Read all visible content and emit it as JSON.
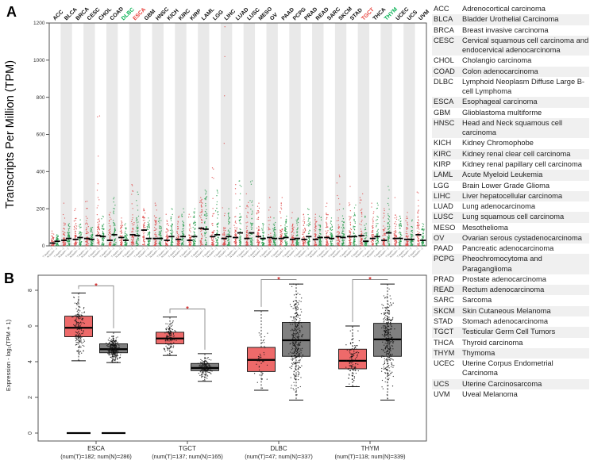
{
  "figure": {
    "panel_a_label": "A",
    "panel_b_label": "B"
  },
  "chart_data": [
    {
      "type": "scatter",
      "panel": "A",
      "ylabel": "Transcripts Per Million (TPM)",
      "ylim": [
        0,
        1200
      ],
      "yticks": [
        0,
        200,
        400,
        600,
        800,
        1000,
        1200
      ],
      "x_tick_pattern": [
        "T (num=···)",
        "N (num=···)"
      ],
      "tumor_color": "#df5050",
      "normal_color": "#2e9e52",
      "median_color": "#000000",
      "band_color": "#e9e9e9",
      "label_highlights": {
        "DLBC": "#00b050",
        "ESCA": "#e8403a",
        "TGCT": "#e8403a",
        "THYM": "#00b050"
      },
      "estimated": true,
      "categories": [
        "ACC",
        "BLCA",
        "BRCA",
        "CESC",
        "CHOL",
        "COAD",
        "DLBC",
        "ESCA",
        "GBM",
        "HNSC",
        "KICH",
        "KIRC",
        "KIRP",
        "LAML",
        "LGG",
        "LIHC",
        "LUAD",
        "LUSC",
        "MESO",
        "OV",
        "PAAD",
        "PCPG",
        "PRAD",
        "READ",
        "SARC",
        "SKCM",
        "STAD",
        "TGCT",
        "THCA",
        "THYM",
        "UCEC",
        "UCS",
        "UVM"
      ],
      "tumor_median": [
        15,
        30,
        35,
        40,
        55,
        30,
        45,
        60,
        85,
        40,
        30,
        35,
        30,
        95,
        50,
        40,
        45,
        40,
        50,
        45,
        40,
        35,
        35,
        35,
        45,
        50,
        50,
        55,
        40,
        30,
        40,
        35,
        60
      ],
      "tumor_max": [
        80,
        230,
        200,
        240,
        700,
        180,
        150,
        330,
        200,
        230,
        170,
        160,
        170,
        260,
        420,
        1180,
        330,
        280,
        230,
        260,
        260,
        180,
        170,
        170,
        230,
        380,
        320,
        280,
        230,
        200,
        260,
        180,
        290
      ],
      "normal_median": [
        25,
        40,
        45,
        35,
        50,
        60,
        30,
        55,
        40,
        40,
        50,
        50,
        50,
        90,
        60,
        50,
        70,
        70,
        40,
        40,
        45,
        40,
        50,
        45,
        40,
        45,
        50,
        25,
        50,
        70,
        40,
        35,
        30
      ],
      "normal_max": [
        60,
        120,
        140,
        100,
        160,
        260,
        120,
        290,
        150,
        150,
        200,
        200,
        200,
        300,
        300,
        200,
        350,
        350,
        120,
        150,
        160,
        150,
        200,
        160,
        150,
        200,
        220,
        160,
        230,
        320,
        160,
        140,
        120
      ]
    },
    {
      "type": "box",
      "panel": "B",
      "ylabel": "Expression - log₂(TPM + 1)",
      "ylim": [
        0,
        8.8
      ],
      "yticks": [
        0,
        2,
        4,
        6,
        8
      ],
      "tumor_fill": "#ee6a6a",
      "normal_fill": "#808080",
      "box_stroke": "#111111",
      "bracket_color": "#888888",
      "sig_color": "#d22a2a",
      "estimated": true,
      "groups": [
        {
          "name": "ESCA",
          "sub": "(num(T)=182; num(N)=286)",
          "n_t": 182,
          "n_n": 286,
          "tumor": {
            "lo": 4.05,
            "q1": 5.4,
            "med": 5.9,
            "q3": 6.55,
            "hi": 7.85
          },
          "normal": {
            "lo": 3.95,
            "q1": 4.5,
            "med": 4.7,
            "q3": 5.0,
            "hi": 5.65
          },
          "zero_lines": true,
          "sig": "*",
          "bracket_y": 8.25
        },
        {
          "name": "TGCT",
          "sub": "(num(T)=137; num(N)=165)",
          "n_t": 137,
          "n_n": 165,
          "tumor": {
            "lo": 4.35,
            "q1": 5.0,
            "med": 5.3,
            "q3": 5.65,
            "hi": 6.5
          },
          "normal": {
            "lo": 2.9,
            "q1": 3.5,
            "med": 3.65,
            "q3": 3.9,
            "hi": 4.45
          },
          "zero_lines": false,
          "sig": "*",
          "bracket_y": 6.95
        },
        {
          "name": "DLBC",
          "sub": "(num(T)=47; num(N)=337)",
          "n_t": 47,
          "n_n": 337,
          "tumor": {
            "lo": 2.4,
            "q1": 3.45,
            "med": 4.1,
            "q3": 4.8,
            "hi": 6.85
          },
          "normal": {
            "lo": 1.85,
            "q1": 4.3,
            "med": 5.2,
            "q3": 6.2,
            "hi": 8.35
          },
          "zero_lines": false,
          "sig": "*",
          "bracket_y": 8.6
        },
        {
          "name": "THYM",
          "sub": "(num(T)=118; num(N)=339)",
          "n_t": 118,
          "n_n": 339,
          "tumor": {
            "lo": 2.6,
            "q1": 3.6,
            "med": 4.05,
            "q3": 4.7,
            "hi": 6.0
          },
          "normal": {
            "lo": 1.85,
            "q1": 4.3,
            "med": 5.25,
            "q3": 6.15,
            "hi": 8.35
          },
          "zero_lines": false,
          "sig": "*",
          "bracket_y": 8.6
        }
      ]
    }
  ],
  "legend_table": {
    "rows": [
      {
        "abbr": "ACC",
        "name": "Adrenocortical carcinoma"
      },
      {
        "abbr": "BLCA",
        "name": "Bladder Urothelial Carcinoma"
      },
      {
        "abbr": "BRCA",
        "name": "Breast invasive carcinoma"
      },
      {
        "abbr": "CESC",
        "name": "Cervical squamous cell carcinoma and endocervical adenocarcinoma"
      },
      {
        "abbr": "CHOL",
        "name": "Cholangio carcinoma"
      },
      {
        "abbr": "COAD",
        "name": "Colon adenocarcinoma"
      },
      {
        "abbr": "DLBC",
        "name": "Lymphoid Neoplasm Diffuse Large B-cell Lymphoma"
      },
      {
        "abbr": "ESCA",
        "name": "Esophageal carcinoma"
      },
      {
        "abbr": "GBM",
        "name": "Glioblastoma multiforme"
      },
      {
        "abbr": "HNSC",
        "name": "Head and Neck squamous cell carcinoma"
      },
      {
        "abbr": "KICH",
        "name": "Kidney Chromophobe"
      },
      {
        "abbr": "KIRC",
        "name": "Kidney renal clear cell carcinoma"
      },
      {
        "abbr": "KIRP",
        "name": "Kidney renal papillary cell carcinoma"
      },
      {
        "abbr": "LAML",
        "name": "Acute Myeloid Leukemia"
      },
      {
        "abbr": "LGG",
        "name": "Brain Lower Grade Glioma"
      },
      {
        "abbr": "LIHC",
        "name": "Liver hepatocellular carcinoma"
      },
      {
        "abbr": "LUAD",
        "name": "Lung adenocarcinoma"
      },
      {
        "abbr": "LUSC",
        "name": "Lung squamous cell carcinoma"
      },
      {
        "abbr": "MESO",
        "name": "Mesothelioma"
      },
      {
        "abbr": "OV",
        "name": "Ovarian serous cystadenocarcinoma"
      },
      {
        "abbr": "PAAD",
        "name": "Pancreatic adenocarcinoma"
      },
      {
        "abbr": "PCPG",
        "name": "Pheochromocytoma and Paraganglioma"
      },
      {
        "abbr": "PRAD",
        "name": "Prostate adenocarcinoma"
      },
      {
        "abbr": "READ",
        "name": "Rectum adenocarcinoma"
      },
      {
        "abbr": "SARC",
        "name": "Sarcoma"
      },
      {
        "abbr": "SKCM",
        "name": "Skin Cutaneous Melanoma"
      },
      {
        "abbr": "STAD",
        "name": "Stomach adenocarcinoma"
      },
      {
        "abbr": "TGCT",
        "name": "Testicular Germ Cell Tumors"
      },
      {
        "abbr": "THCA",
        "name": "Thyroid carcinoma"
      },
      {
        "abbr": "THYM",
        "name": "Thymoma"
      },
      {
        "abbr": "UCEC",
        "name": "Uterine Corpus Endometrial Carcinoma"
      },
      {
        "abbr": "UCS",
        "name": "Uterine Carcinosarcoma"
      },
      {
        "abbr": "UVM",
        "name": "Uveal Melanoma"
      }
    ]
  }
}
